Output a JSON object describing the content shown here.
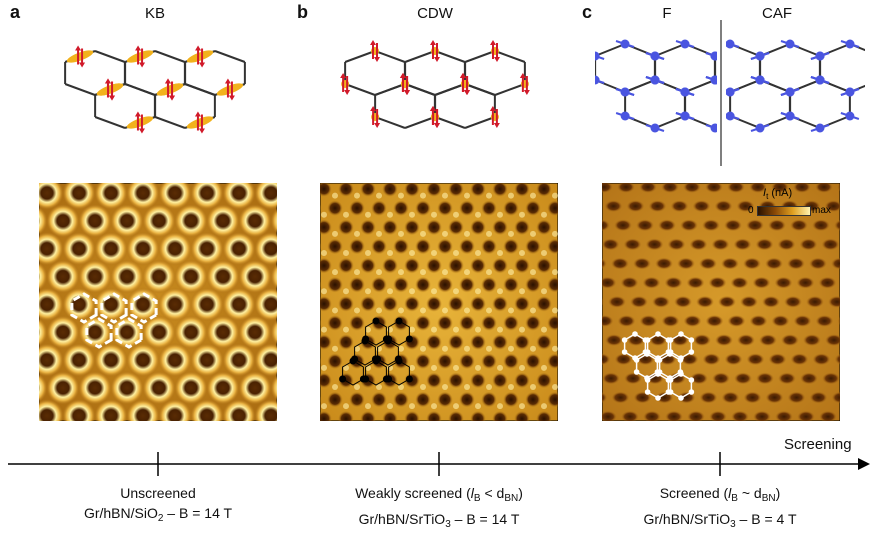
{
  "panels": [
    {
      "letter": "a",
      "phase": "KB",
      "scenario": "Unscreened",
      "substrate_pre": "Gr/hBN/SiO",
      "substrate_sub": "2",
      "field": " – B = 14 T"
    },
    {
      "letter": "b",
      "phase": "CDW",
      "scenario": "Weakly screened (",
      "scenario_expr": "l",
      "scenario_sub": "B",
      "scenario_rel": " < d",
      "scenario_sub2": "BN",
      "scenario_end": ")",
      "substrate_pre": "Gr/hBN/SrTiO",
      "substrate_sub": "3",
      "field": " – B = 14 T"
    },
    {
      "letter": "c",
      "phase": "F",
      "phase2": "CAF",
      "scenario": "Screened (",
      "scenario_expr": "l",
      "scenario_sub": "B",
      "scenario_rel": " ~ d",
      "scenario_sub2": "BN",
      "scenario_end": ")",
      "substrate_pre": "Gr/hBN/SrTiO",
      "substrate_sub": "3",
      "field": " – B = 4 T"
    }
  ],
  "axis": {
    "label": "Screening"
  },
  "colorbar": {
    "quantity": "I",
    "quantity_sub": "t",
    "unit": " (nA)",
    "min": "0",
    "max": "max"
  },
  "colors": {
    "kb_bond": "#f2b21c",
    "cdw_site": "#f2b21c",
    "spin_arrow": "#d11a2a",
    "af_spin": "#4a55e0",
    "stm_dark": "#3a1a02",
    "stm_bright": "#fff2a8"
  }
}
